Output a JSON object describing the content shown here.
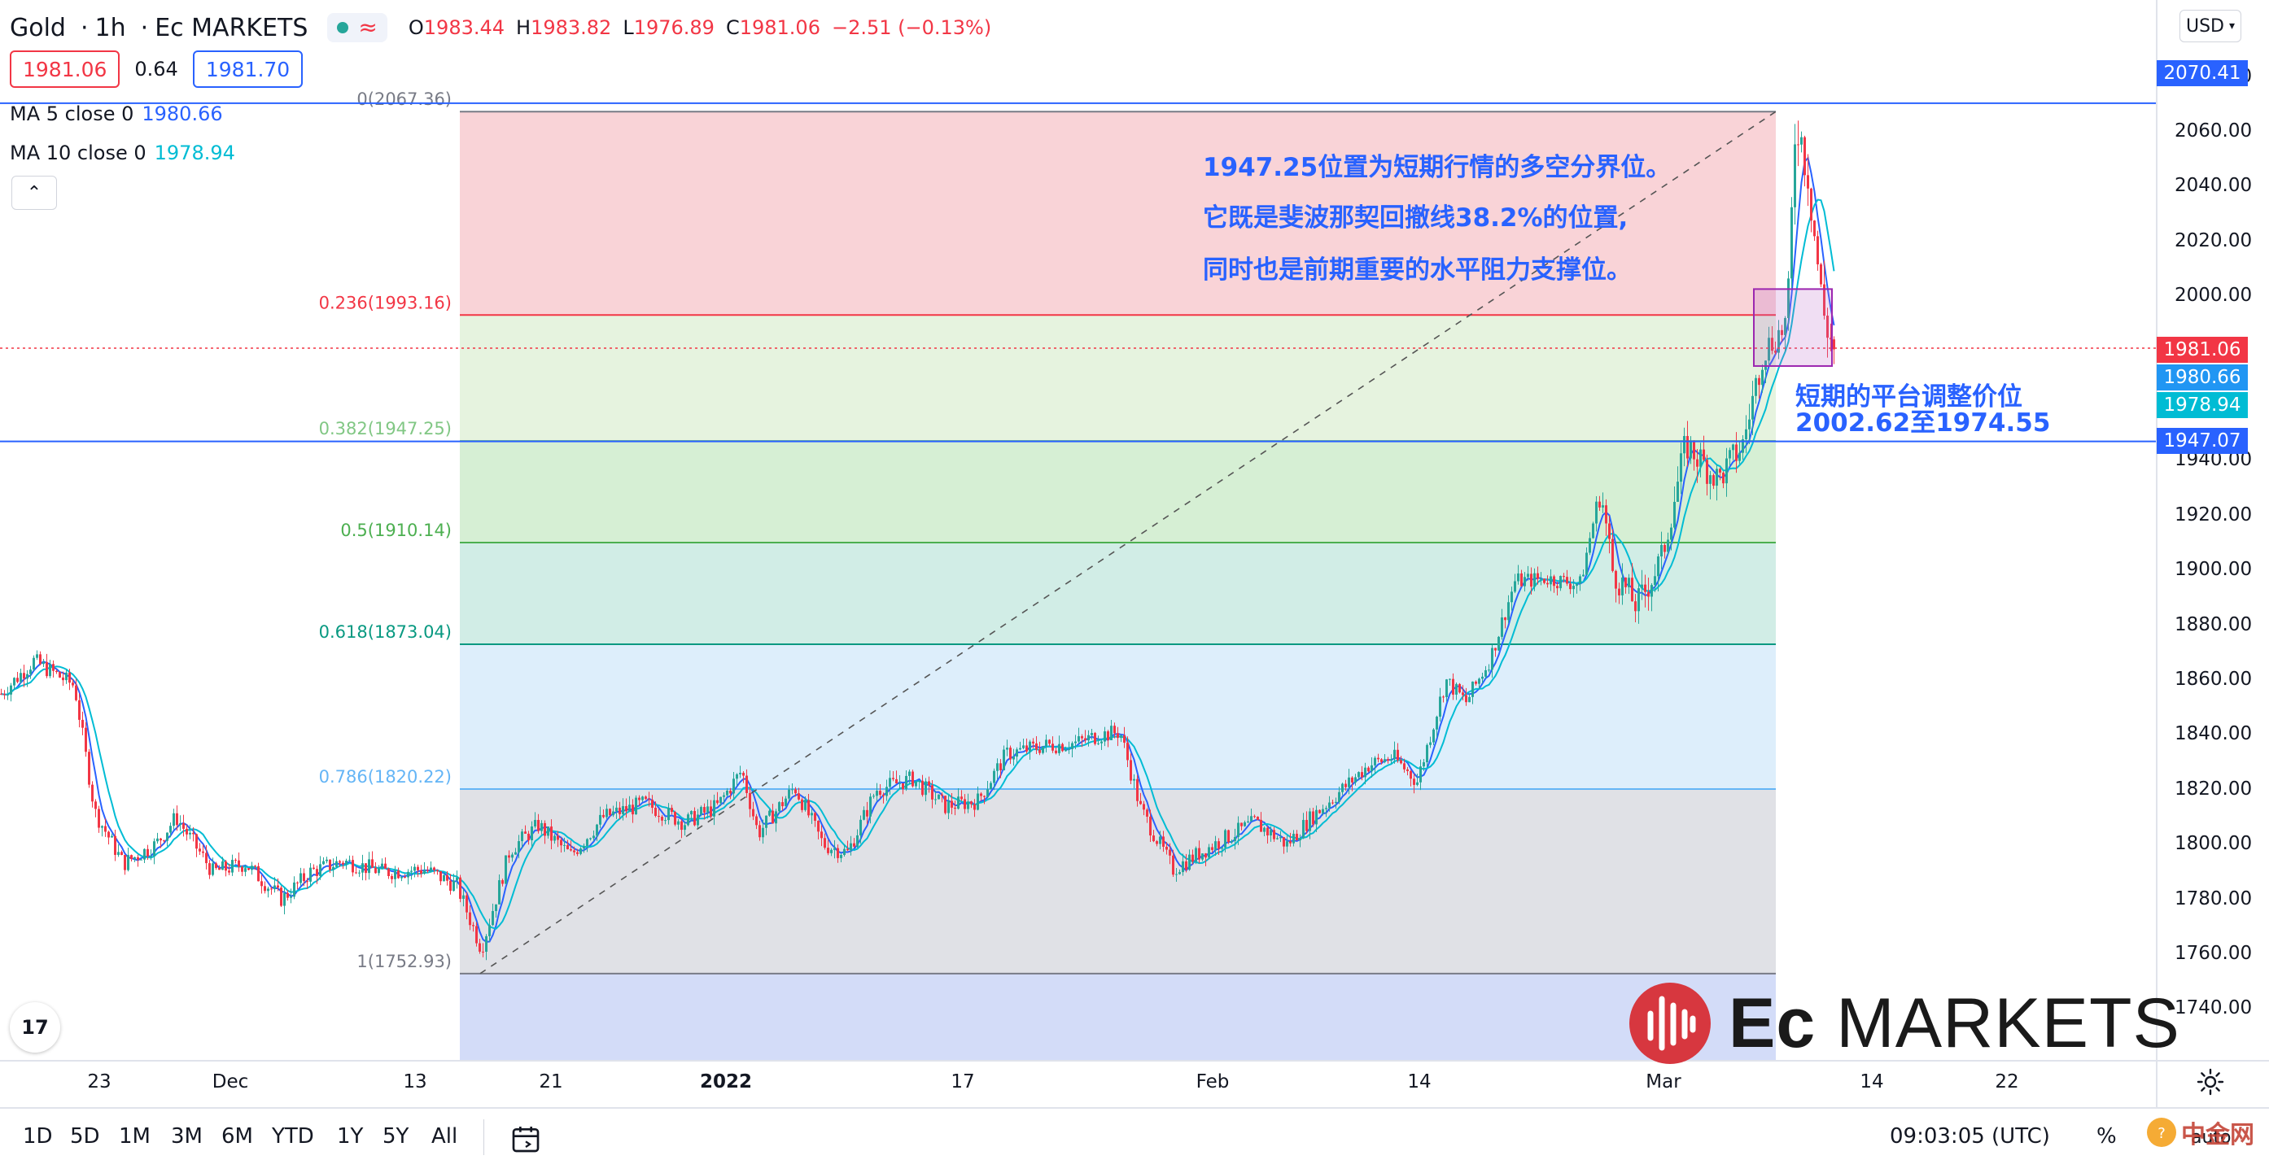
{
  "header": {
    "symbol": "Gold",
    "interval": "1h",
    "broker": "Ec MARKETS",
    "ohlc": {
      "open_label": "O",
      "open": "1983.44",
      "high_label": "H",
      "high": "1983.82",
      "low_label": "L",
      "low": "1976.89",
      "close_label": "C",
      "close": "1981.06",
      "change": "−2.51 (−0.13%)"
    },
    "sell_price": "1981.06",
    "spread": "0.64",
    "buy_price": "1981.70"
  },
  "indicators": [
    {
      "label": "MA 5 close 0",
      "value": "1980.66",
      "color": "#2962ff"
    },
    {
      "label": "MA 10 close 0",
      "value": "1978.94",
      "color": "#00bcd4"
    }
  ],
  "fib_levels": [
    {
      "label": "0(2067.36)",
      "price": 2067.36,
      "color": "#787b86"
    },
    {
      "label": "0.236(1993.16)",
      "price": 1993.16,
      "color": "#f23645"
    },
    {
      "label": "0.382(1947.25)",
      "price": 1947.25,
      "color": "#81c784"
    },
    {
      "label": "0.5(1910.14)",
      "price": 1910.14,
      "color": "#4caf50"
    },
    {
      "label": "0.618(1873.04)",
      "price": 1873.04,
      "color": "#089981"
    },
    {
      "label": "0.786(1820.22)",
      "price": 1820.22,
      "color": "#64b5f6"
    },
    {
      "label": "1(1752.93)",
      "price": 1752.93,
      "color": "#787b86"
    }
  ],
  "annotations": {
    "line1": "1947.25位置为短期行情的多空分界位。",
    "line2": "它既是斐波那契回撤线38.2%的位置,",
    "line3": "同时也是前期重要的水平阻力支撑位。",
    "box_line1": "短期的平台调整价位",
    "box_line2": "2002.62至1974.55"
  },
  "price_scale": {
    "currency": "USD",
    "ticks": [
      "2080.00",
      "2060.00",
      "2040.00",
      "2020.00",
      "2000.00",
      "1940.00",
      "1920.00",
      "1900.00",
      "1880.00",
      "1860.00",
      "1840.00",
      "1820.00",
      "1800.00",
      "1780.00",
      "1760.00",
      "1740.00"
    ],
    "tags": [
      {
        "text": "2070.41",
        "price": 2070.41,
        "color": "#2962ff"
      },
      {
        "text": "1981.06",
        "price": 1981.06,
        "color": "#f23645"
      },
      {
        "text": "1980.66",
        "price": 1980.66,
        "color": "#2196f3"
      },
      {
        "text": "1978.94",
        "price": 1978.94,
        "color": "#00bcd4"
      },
      {
        "text": "1947.07",
        "price": 1947.07,
        "color": "#2962ff"
      }
    ]
  },
  "time_axis": [
    {
      "label": "23",
      "bold": false
    },
    {
      "label": "Dec",
      "bold": false
    },
    {
      "label": "13",
      "bold": false
    },
    {
      "label": "21",
      "bold": false
    },
    {
      "label": "2022",
      "bold": true
    },
    {
      "label": "17",
      "bold": false
    },
    {
      "label": "Feb",
      "bold": false
    },
    {
      "label": "14",
      "bold": false
    },
    {
      "label": "Mar",
      "bold": false
    },
    {
      "label": "14",
      "bold": false
    },
    {
      "label": "22",
      "bold": false
    }
  ],
  "toolbar": {
    "ranges": [
      "1D",
      "5D",
      "1M",
      "3M",
      "6M",
      "YTD",
      "1Y",
      "5Y",
      "All"
    ],
    "time": "09:03:05 (UTC)",
    "percent": "%",
    "auto": "auto"
  },
  "brand": {
    "left": "Ec",
    "right": "MARKETS"
  },
  "watermark": "中金网",
  "colors": {
    "up": "#26a69a",
    "down": "#f23645",
    "accent": "#2962ff"
  }
}
